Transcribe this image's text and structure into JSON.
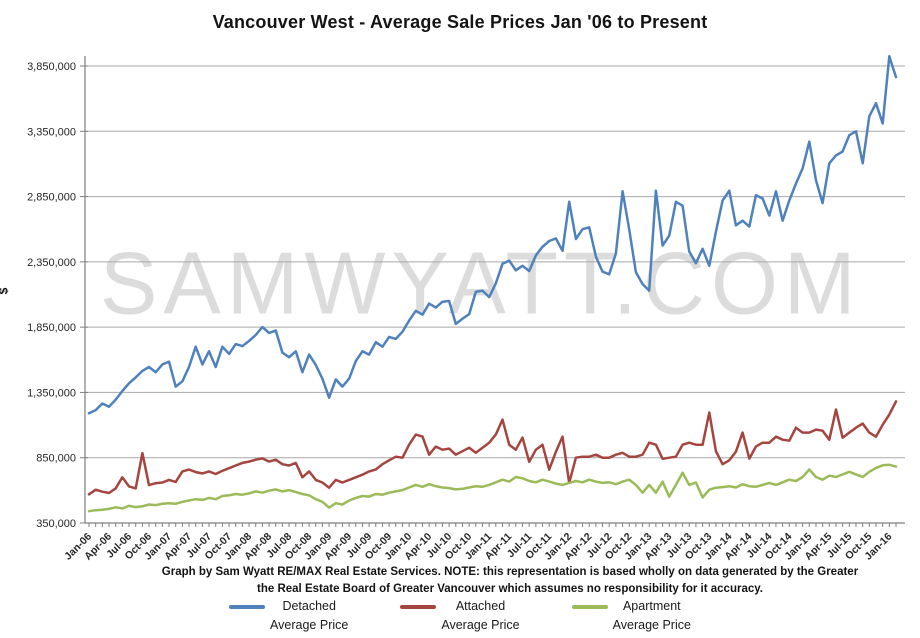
{
  "title": "Vancouver West - Average Sale Prices Jan '06 to Present",
  "watermark": "SAMWYATT.COM",
  "y_axis_title": "$",
  "caption": {
    "line1": "Graph by Sam Wyatt RE/MAX Real Estate Services.  NOTE: this representation is based wholly  on data generated by the Greater",
    "line2": "the Real Estate Board of Greater Vancouver which assumes no responsibility  for it accuracy."
  },
  "legend": [
    {
      "label": "Detached",
      "sublabel": "Average Price",
      "color": "#4F81BD"
    },
    {
      "label": "Attached",
      "sublabel": "Average Price",
      "color": "#A5453F"
    },
    {
      "label": "Apartment",
      "sublabel": "Average Price",
      "color": "#9BBB59"
    }
  ],
  "chart_data": {
    "type": "line",
    "title": "Vancouver West - Average Sale Prices Jan '06 to Present",
    "xlabel": "",
    "ylabel": "$",
    "ylim": [
      350000,
      3850000
    ],
    "ytick_step": 500000,
    "y_tick_labels": [
      "350,000",
      "850,000",
      "1,350,000",
      "1,850,000",
      "2,350,000",
      "2,850,000",
      "3,350,000",
      "3,850,000"
    ],
    "grid": "horizontal",
    "legend_position": "bottom",
    "x_unit": "month",
    "x_range": "Jan-06 to Feb-16",
    "months_per_tick_label": 3,
    "x_tick_labels": [
      "Jan-06",
      "Apr-06",
      "Jul-06",
      "Oct-06",
      "Jan-07",
      "Apr-07",
      "Jul-07",
      "Oct-07",
      "Jan-08",
      "Apr-08",
      "Jul-08",
      "Oct-08",
      "Jan-09",
      "Apr-09",
      "Jul-09",
      "Oct-09",
      "Jan-10",
      "Apr-10",
      "Jul-10",
      "Oct-10",
      "Jan-11",
      "Apr-11",
      "Jul-11",
      "Oct-11",
      "Jan-12",
      "Apr-12",
      "Jul-12",
      "Oct-12",
      "Jan-13",
      "Apr-13",
      "Jul-13",
      "Oct-13",
      "Jan-14",
      "Apr-14",
      "Jul-14",
      "Oct-14",
      "Jan-15",
      "Apr-15",
      "Jul-15",
      "Oct-15",
      "Jan-16"
    ],
    "values_note": "monthly average sale price in $, estimated from plot",
    "series": [
      {
        "name": "Detached Average Price",
        "color": "#4F81BD",
        "values": [
          1190000,
          1215000,
          1265000,
          1240000,
          1295000,
          1360000,
          1420000,
          1465000,
          1515000,
          1545000,
          1505000,
          1565000,
          1585000,
          1395000,
          1435000,
          1545000,
          1700000,
          1565000,
          1665000,
          1545000,
          1700000,
          1645000,
          1720000,
          1705000,
          1745000,
          1790000,
          1850000,
          1805000,
          1825000,
          1655000,
          1620000,
          1665000,
          1505000,
          1640000,
          1560000,
          1455000,
          1310000,
          1450000,
          1395000,
          1455000,
          1590000,
          1665000,
          1640000,
          1735000,
          1700000,
          1775000,
          1760000,
          1815000,
          1900000,
          1975000,
          1945000,
          2030000,
          2000000,
          2045000,
          2050000,
          1875000,
          1915000,
          1950000,
          2120000,
          2130000,
          2080000,
          2185000,
          2335000,
          2360000,
          2285000,
          2320000,
          2280000,
          2400000,
          2465000,
          2510000,
          2530000,
          2435000,
          2810000,
          2525000,
          2600000,
          2615000,
          2390000,
          2275000,
          2255000,
          2415000,
          2890000,
          2600000,
          2270000,
          2180000,
          2130000,
          2895000,
          2475000,
          2550000,
          2810000,
          2780000,
          2430000,
          2340000,
          2450000,
          2320000,
          2580000,
          2820000,
          2895000,
          2630000,
          2665000,
          2620000,
          2860000,
          2835000,
          2705000,
          2890000,
          2665000,
          2820000,
          2950000,
          3065000,
          3270000,
          2975000,
          2800000,
          3105000,
          3165000,
          3195000,
          3320000,
          3350000,
          3105000,
          3465000,
          3565000,
          3410000,
          3925000,
          3765000
        ]
      },
      {
        "name": "Attached Average Price",
        "color": "#A5453F",
        "values": [
          570000,
          605000,
          590000,
          580000,
          615000,
          700000,
          630000,
          615000,
          885000,
          640000,
          655000,
          660000,
          680000,
          665000,
          745000,
          760000,
          740000,
          730000,
          745000,
          725000,
          750000,
          770000,
          790000,
          810000,
          820000,
          835000,
          845000,
          820000,
          835000,
          800000,
          790000,
          810000,
          700000,
          745000,
          680000,
          660000,
          620000,
          680000,
          660000,
          680000,
          700000,
          720000,
          745000,
          760000,
          800000,
          830000,
          858000,
          850000,
          950000,
          1027000,
          1012000,
          873000,
          935000,
          911000,
          920000,
          873000,
          900000,
          927000,
          888000,
          927000,
          965000,
          1027000,
          1142000,
          950000,
          911000,
          1004000,
          819000,
          911000,
          950000,
          758000,
          896000,
          1012000,
          658000,
          850000,
          858000,
          858000,
          873000,
          850000,
          850000,
          873000,
          888000,
          858000,
          858000,
          873000,
          965000,
          950000,
          842000,
          850000,
          858000,
          950000,
          965000,
          950000,
          950000,
          1196000,
          900000,
          800000,
          830000,
          896000,
          1042000,
          843000,
          935000,
          965000,
          965000,
          1011000,
          988000,
          980000,
          1080000,
          1042000,
          1042000,
          1065000,
          1057000,
          988000,
          1219000,
          1003000,
          1042000,
          1080000,
          1111000,
          1042000,
          1011000,
          1103000,
          1180000,
          1281000
        ]
      },
      {
        "name": "Apartment Average Price",
        "color": "#9BBB59",
        "values": [
          440000,
          448000,
          452000,
          458000,
          470000,
          462000,
          482000,
          472000,
          478000,
          492000,
          487000,
          497000,
          502000,
          497000,
          512000,
          522000,
          532000,
          527000,
          542000,
          532000,
          557000,
          562000,
          572000,
          567000,
          577000,
          592000,
          582000,
          597000,
          607000,
          592000,
          602000,
          587000,
          572000,
          562000,
          532000,
          512000,
          468000,
          502000,
          492000,
          522000,
          542000,
          557000,
          552000,
          572000,
          567000,
          582000,
          592000,
          602000,
          622000,
          642000,
          627000,
          647000,
          632000,
          622000,
          617000,
          607000,
          612000,
          622000,
          632000,
          627000,
          642000,
          662000,
          682000,
          667000,
          702000,
          692000,
          672000,
          662000,
          682000,
          667000,
          652000,
          642000,
          657000,
          672000,
          662000,
          682000,
          667000,
          657000,
          662000,
          647000,
          667000,
          682000,
          642000,
          582000,
          642000,
          582000,
          667000,
          552000,
          642000,
          735000,
          642000,
          660000,
          545000,
          605000,
          620000,
          625000,
          632000,
          622000,
          647000,
          632000,
          627000,
          642000,
          657000,
          642000,
          662000,
          682000,
          672000,
          702000,
          760000,
          702000,
          682000,
          712000,
          702000,
          722000,
          742000,
          722000,
          702000,
          742000,
          772000,
          792000,
          796000,
          782000
        ]
      }
    ]
  }
}
